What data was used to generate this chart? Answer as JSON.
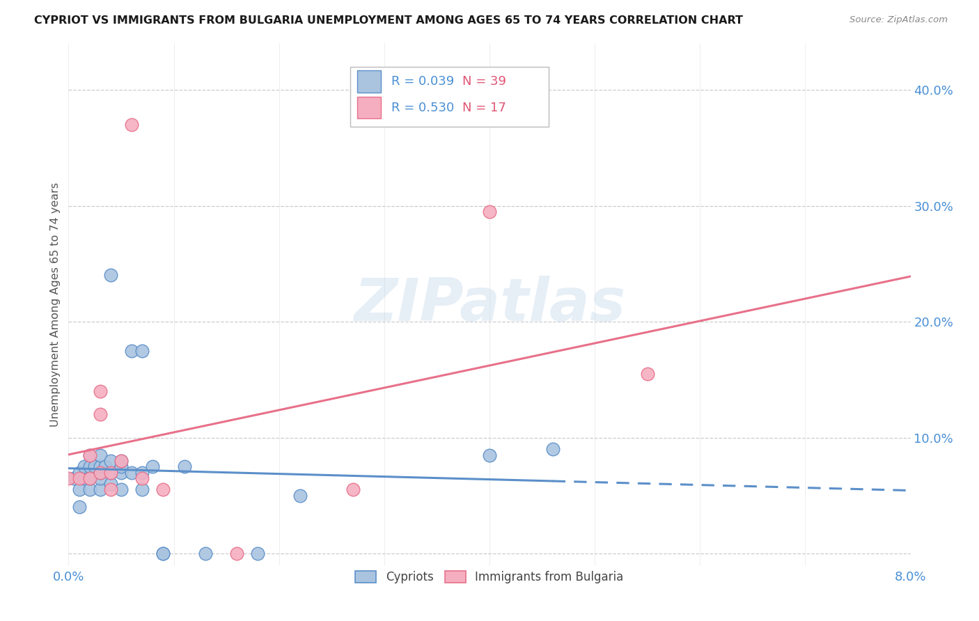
{
  "title": "CYPRIOT VS IMMIGRANTS FROM BULGARIA UNEMPLOYMENT AMONG AGES 65 TO 74 YEARS CORRELATION CHART",
  "source": "Source: ZipAtlas.com",
  "ylabel": "Unemployment Among Ages 65 to 74 years",
  "xlim": [
    0.0,
    0.08
  ],
  "ylim": [
    -0.01,
    0.44
  ],
  "yticks": [
    0.0,
    0.1,
    0.2,
    0.3,
    0.4
  ],
  "xticks": [
    0.0,
    0.01,
    0.02,
    0.03,
    0.04,
    0.05,
    0.06,
    0.07,
    0.08
  ],
  "xticklabels": [
    "0.0%",
    "",
    "",
    "",
    "",
    "",
    "",
    "",
    "8.0%"
  ],
  "yticklabels": [
    "",
    "10.0%",
    "20.0%",
    "30.0%",
    "40.0%"
  ],
  "cypriot_color": "#aac4e0",
  "bulgaria_color": "#f5aec0",
  "cypriot_edge_color": "#5b8fc9",
  "bulgaria_edge_color": "#e8708a",
  "cypriot_R": 0.039,
  "cypriot_N": 39,
  "bulgaria_R": 0.53,
  "bulgaria_N": 17,
  "legend_R_color": "#4a8fd4",
  "legend_N_color": "#e05575",
  "watermark": "ZIPatlas",
  "cypriot_x": [
    0.0005,
    0.001,
    0.001,
    0.001,
    0.0015,
    0.0015,
    0.002,
    0.002,
    0.002,
    0.002,
    0.0025,
    0.003,
    0.003,
    0.003,
    0.003,
    0.003,
    0.0035,
    0.004,
    0.004,
    0.004,
    0.004,
    0.005,
    0.005,
    0.005,
    0.005,
    0.006,
    0.006,
    0.007,
    0.007,
    0.007,
    0.008,
    0.009,
    0.009,
    0.011,
    0.013,
    0.018,
    0.022,
    0.04,
    0.046
  ],
  "cypriot_y": [
    0.065,
    0.04,
    0.055,
    0.07,
    0.065,
    0.075,
    0.055,
    0.065,
    0.075,
    0.085,
    0.075,
    0.055,
    0.065,
    0.07,
    0.075,
    0.085,
    0.075,
    0.06,
    0.07,
    0.08,
    0.24,
    0.055,
    0.07,
    0.075,
    0.08,
    0.07,
    0.175,
    0.055,
    0.07,
    0.175,
    0.075,
    0.0,
    0.0,
    0.075,
    0.0,
    0.0,
    0.05,
    0.085,
    0.09
  ],
  "bulgaria_x": [
    0.0,
    0.001,
    0.002,
    0.002,
    0.003,
    0.003,
    0.003,
    0.004,
    0.004,
    0.005,
    0.006,
    0.007,
    0.009,
    0.016,
    0.027,
    0.04,
    0.055
  ],
  "bulgaria_y": [
    0.065,
    0.065,
    0.065,
    0.085,
    0.07,
    0.12,
    0.14,
    0.07,
    0.055,
    0.08,
    0.37,
    0.065,
    0.055,
    0.0,
    0.055,
    0.295,
    0.155
  ],
  "background_color": "#ffffff",
  "grid_color": "#cccccc"
}
